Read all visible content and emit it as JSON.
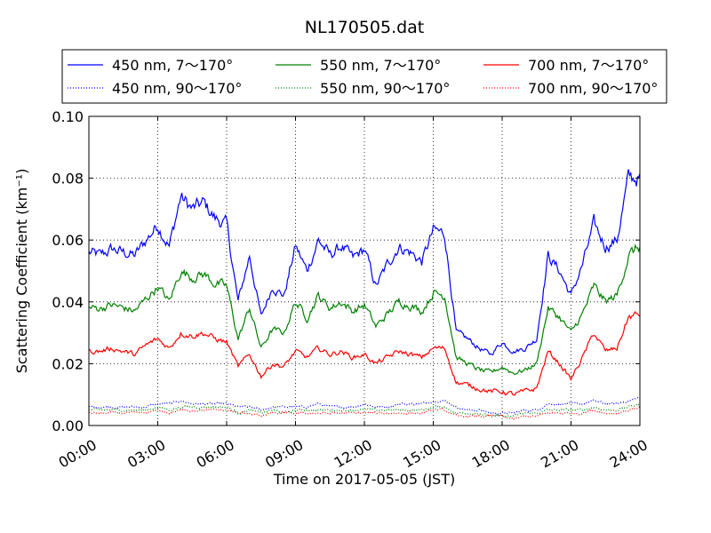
{
  "chart_data": {
    "type": "line",
    "title": "NL170505.dat",
    "xlabel": "Time on 2017-05-05 (JST)",
    "ylabel": "Scattering Coefficient (km⁻¹)",
    "x_unit": "hours",
    "xlim": [
      0,
      24
    ],
    "ylim": [
      0,
      0.1
    ],
    "x_ticks": [
      0,
      3,
      6,
      9,
      12,
      15,
      18,
      21,
      24
    ],
    "x_tick_labels": [
      "00:00",
      "03:00",
      "06:00",
      "09:00",
      "12:00",
      "15:00",
      "18:00",
      "21:00",
      "24:00"
    ],
    "y_ticks": [
      0,
      0.02,
      0.04,
      0.06,
      0.08,
      0.1
    ],
    "y_tick_labels": [
      "0.00",
      "0.02",
      "0.04",
      "0.06",
      "0.08",
      "0.10"
    ],
    "grid": true,
    "legend_placement": "top, above plot",
    "x": [
      0.0,
      0.5,
      1.0,
      1.5,
      2.0,
      2.5,
      3.0,
      3.5,
      4.0,
      4.5,
      5.0,
      5.5,
      6.0,
      6.5,
      7.0,
      7.5,
      8.0,
      8.5,
      9.0,
      9.5,
      10.0,
      10.5,
      11.0,
      11.5,
      12.0,
      12.5,
      13.0,
      13.5,
      14.0,
      14.5,
      15.0,
      15.5,
      16.0,
      16.5,
      17.0,
      17.5,
      18.0,
      18.5,
      19.0,
      19.5,
      20.0,
      20.5,
      21.0,
      21.5,
      22.0,
      22.5,
      23.0,
      23.5,
      24.0
    ],
    "series": [
      {
        "name": "450 nm, 7～170°",
        "color": "#0000ff",
        "style": "solid",
        "values": [
          0.056,
          0.055,
          0.057,
          0.056,
          0.055,
          0.06,
          0.065,
          0.058,
          0.074,
          0.07,
          0.072,
          0.067,
          0.065,
          0.04,
          0.055,
          0.035,
          0.045,
          0.042,
          0.058,
          0.05,
          0.06,
          0.055,
          0.058,
          0.054,
          0.057,
          0.045,
          0.052,
          0.058,
          0.056,
          0.053,
          0.063,
          0.062,
          0.03,
          0.028,
          0.025,
          0.023,
          0.027,
          0.024,
          0.025,
          0.028,
          0.055,
          0.05,
          0.042,
          0.052,
          0.065,
          0.058,
          0.06,
          0.08,
          0.08
        ]
      },
      {
        "name": "450 nm, 90～170°",
        "color": "#0000ff",
        "style": "dotted",
        "values": [
          0.006,
          0.006,
          0.006,
          0.006,
          0.006,
          0.006,
          0.007,
          0.007,
          0.008,
          0.007,
          0.007,
          0.007,
          0.007,
          0.006,
          0.006,
          0.005,
          0.006,
          0.006,
          0.006,
          0.006,
          0.007,
          0.006,
          0.006,
          0.006,
          0.007,
          0.006,
          0.006,
          0.007,
          0.007,
          0.007,
          0.008,
          0.008,
          0.006,
          0.005,
          0.005,
          0.004,
          0.004,
          0.004,
          0.005,
          0.005,
          0.007,
          0.007,
          0.007,
          0.007,
          0.008,
          0.007,
          0.007,
          0.008,
          0.009
        ]
      },
      {
        "name": "550 nm, 7～170°",
        "color": "#008000",
        "style": "solid",
        "values": [
          0.038,
          0.038,
          0.039,
          0.038,
          0.037,
          0.041,
          0.045,
          0.04,
          0.05,
          0.048,
          0.049,
          0.046,
          0.045,
          0.028,
          0.038,
          0.025,
          0.031,
          0.03,
          0.04,
          0.035,
          0.042,
          0.038,
          0.04,
          0.037,
          0.039,
          0.032,
          0.036,
          0.04,
          0.039,
          0.037,
          0.043,
          0.042,
          0.022,
          0.02,
          0.018,
          0.017,
          0.019,
          0.017,
          0.018,
          0.02,
          0.038,
          0.035,
          0.03,
          0.036,
          0.045,
          0.04,
          0.042,
          0.055,
          0.058
        ]
      },
      {
        "name": "550 nm, 90～170°",
        "color": "#008000",
        "style": "dotted",
        "values": [
          0.005,
          0.005,
          0.005,
          0.005,
          0.005,
          0.005,
          0.006,
          0.005,
          0.006,
          0.006,
          0.006,
          0.006,
          0.006,
          0.004,
          0.005,
          0.004,
          0.005,
          0.004,
          0.005,
          0.005,
          0.005,
          0.005,
          0.005,
          0.005,
          0.005,
          0.005,
          0.005,
          0.005,
          0.005,
          0.005,
          0.006,
          0.006,
          0.004,
          0.004,
          0.004,
          0.003,
          0.003,
          0.003,
          0.004,
          0.004,
          0.005,
          0.005,
          0.005,
          0.005,
          0.006,
          0.005,
          0.005,
          0.006,
          0.007
        ]
      },
      {
        "name": "700 nm, 7～170°",
        "color": "#ff0000",
        "style": "solid",
        "values": [
          0.024,
          0.024,
          0.025,
          0.024,
          0.023,
          0.026,
          0.028,
          0.025,
          0.03,
          0.029,
          0.03,
          0.028,
          0.027,
          0.019,
          0.023,
          0.016,
          0.02,
          0.019,
          0.024,
          0.022,
          0.025,
          0.023,
          0.024,
          0.022,
          0.023,
          0.02,
          0.022,
          0.024,
          0.023,
          0.022,
          0.025,
          0.025,
          0.014,
          0.013,
          0.012,
          0.011,
          0.011,
          0.01,
          0.011,
          0.012,
          0.024,
          0.02,
          0.015,
          0.022,
          0.03,
          0.024,
          0.025,
          0.035,
          0.036
        ]
      },
      {
        "name": "700 nm, 90～170°",
        "color": "#ff0000",
        "style": "dotted",
        "values": [
          0.004,
          0.004,
          0.004,
          0.004,
          0.004,
          0.004,
          0.005,
          0.004,
          0.005,
          0.005,
          0.005,
          0.005,
          0.005,
          0.004,
          0.004,
          0.003,
          0.004,
          0.004,
          0.004,
          0.004,
          0.004,
          0.004,
          0.004,
          0.004,
          0.004,
          0.004,
          0.004,
          0.004,
          0.004,
          0.004,
          0.005,
          0.005,
          0.003,
          0.003,
          0.003,
          0.003,
          0.003,
          0.002,
          0.003,
          0.003,
          0.004,
          0.004,
          0.004,
          0.004,
          0.005,
          0.004,
          0.004,
          0.005,
          0.006
        ]
      }
    ]
  }
}
